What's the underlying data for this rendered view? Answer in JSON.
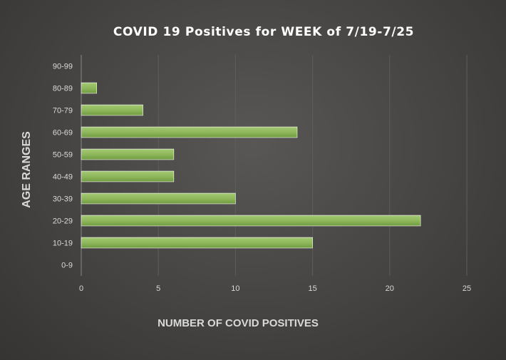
{
  "chart_data": {
    "type": "bar",
    "orientation": "horizontal",
    "title": "COVID 19 Positives for WEEK of 7/19-7/25",
    "xlabel": "NUMBER OF COVID POSITIVES",
    "ylabel": "AGE RANGES",
    "categories": [
      "0-9",
      "10-19",
      "20-29",
      "30-39",
      "40-49",
      "50-59",
      "60-69",
      "70-79",
      "80-89",
      "90-99"
    ],
    "values": [
      0,
      15,
      22,
      10,
      6,
      6,
      14,
      4,
      1,
      0
    ],
    "xlim": [
      0,
      25
    ],
    "xticks": [
      0,
      5,
      10,
      15,
      20,
      25
    ],
    "grid": true,
    "legend": "none",
    "colors": {
      "bar": "#8db55a",
      "bar_light": "#a3c972",
      "bar_dark": "#6f9a40"
    }
  }
}
